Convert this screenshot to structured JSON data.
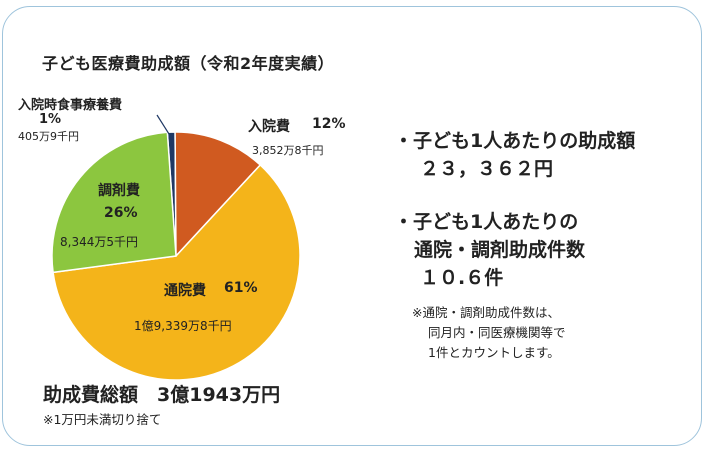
{
  "title": "子ども医療費助成額（令和2年度実績）",
  "chart_data": {
    "type": "pie",
    "slices": [
      {
        "label": "入院時食事療養費",
        "percent_label": "1%",
        "amount": "405万9千円",
        "value": 1,
        "color": "#1f3864"
      },
      {
        "label": "入院費",
        "percent_label": "12%",
        "amount": "3,852万8千円",
        "value": 12,
        "color": "#d05a20"
      },
      {
        "label": "通院費",
        "percent_label": "61%",
        "amount": "1億9,339万8千円",
        "value": 61,
        "color": "#f4b41a"
      },
      {
        "label": "調剤費",
        "percent_label": "26%",
        "amount": "8,344万5千円",
        "value": 26,
        "color": "#8cc63f"
      }
    ]
  },
  "right": {
    "line1": "・子ども1人あたりの助成額",
    "line2": "２３，３６２円",
    "line3": "・子ども1人あたりの",
    "line4": "通院・調剤助成件数",
    "line5": "１０.６件",
    "note1": "※通院・調剤助成件数は、",
    "note2": "同月内・同医療機関等で",
    "note3": "1件とカウントします。"
  },
  "total": "助成費総額　3億1943万円",
  "footnote": "※1万円未満切り捨て"
}
